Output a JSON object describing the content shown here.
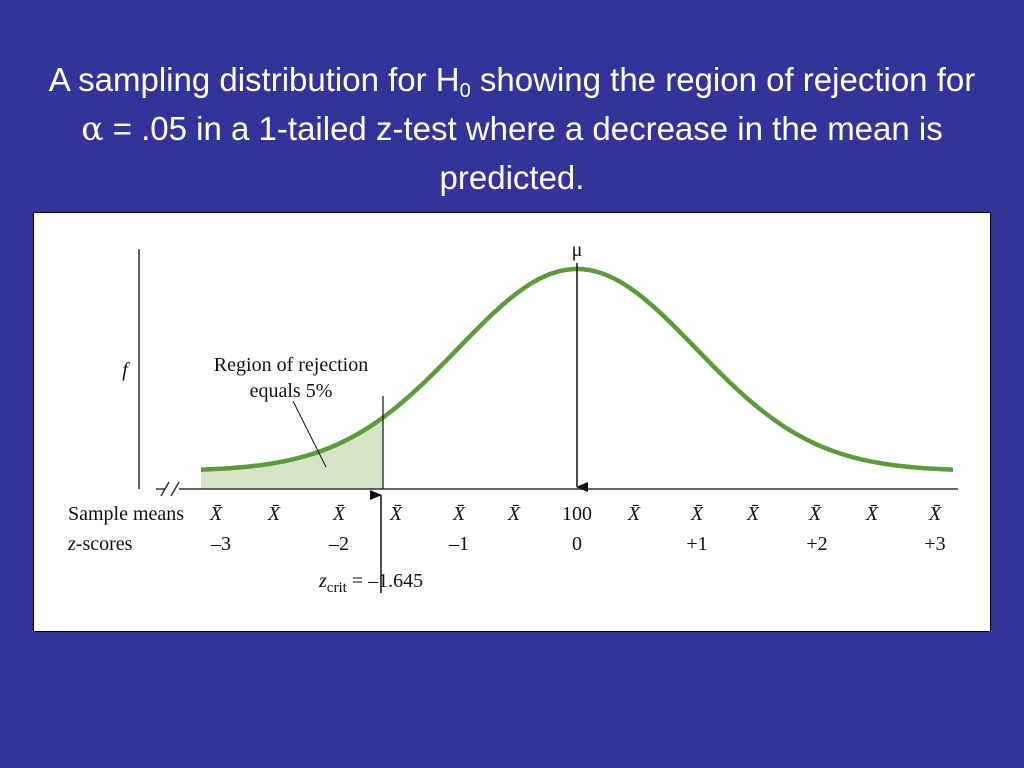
{
  "title": {
    "text_before": "A sampling distribution for H",
    "subscript": "0",
    "text_after": " showing the region of rejection for ",
    "alpha": "α",
    "text_end": " = .05 in a 1-tailed z-test where a decrease in the mean is predicted."
  },
  "diagram": {
    "mu_label": "μ",
    "y_axis_label": "f",
    "annotation": [
      "Region of rejection",
      "equals 5%"
    ],
    "sample_means_label": "Sample means",
    "z_scores_label": {
      "symbol": "z",
      "text": "-scores"
    },
    "sample_means": [
      "X̄",
      "X̄",
      "X̄",
      "X̄",
      "X̄",
      "X̄",
      "100",
      "X̄",
      "X̄",
      "X̄",
      "X̄",
      "X̄",
      "X̄"
    ],
    "z_scores": [
      "–3",
      "–2",
      "–1",
      "0",
      "+1",
      "+2",
      "+3"
    ],
    "z_crit": {
      "symbol": "z",
      "subscript": "crit",
      "text": " = –1.645"
    }
  }
}
